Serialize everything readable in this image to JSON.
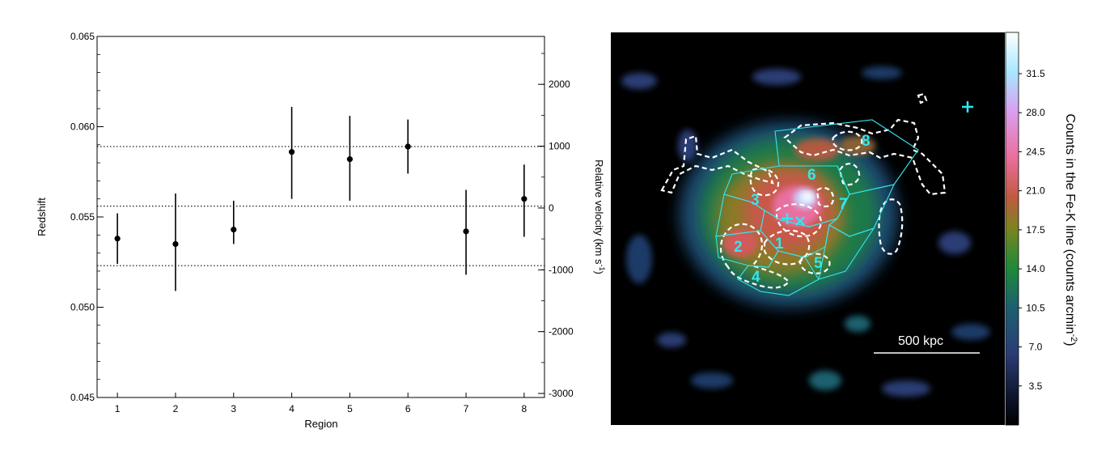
{
  "chart_data": [
    {
      "type": "scatter",
      "xlabel": "Region",
      "ylabel": "Redshift",
      "y2label_main": "Relative velocity (km s",
      "y2label_sup": "-1",
      "y2label_end": ")",
      "xlim": [
        0.65,
        8.35
      ],
      "ylim": [
        0.045,
        0.065
      ],
      "y2lim": [
        -3065,
        2775
      ],
      "x_ticks": [
        "1",
        "2",
        "3",
        "4",
        "5",
        "6",
        "7",
        "8"
      ],
      "y_ticks": [
        "0.045",
        "0.050",
        "0.055",
        "0.060",
        "0.065"
      ],
      "y_tick_values": [
        0.045,
        0.05,
        0.055,
        0.06,
        0.065
      ],
      "y2_ticks": [
        "-3000",
        "-2000",
        "-1000",
        "0",
        "1000",
        "2000"
      ],
      "y2_tick_values": [
        -3000,
        -2000,
        -1000,
        0,
        1000,
        2000
      ],
      "reference_lines": [
        0.0523,
        0.0556,
        0.0589
      ],
      "series": [
        {
          "points": [
            {
              "x": 1,
              "y": 0.0538,
              "lo": 0.0524,
              "hi": 0.0552
            },
            {
              "x": 2,
              "y": 0.0535,
              "lo": 0.0509,
              "hi": 0.0563
            },
            {
              "x": 3,
              "y": 0.0543,
              "lo": 0.0535,
              "hi": 0.0559
            },
            {
              "x": 4,
              "y": 0.0586,
              "lo": 0.056,
              "hi": 0.0611
            },
            {
              "x": 5,
              "y": 0.0582,
              "lo": 0.0559,
              "hi": 0.0606
            },
            {
              "x": 6,
              "y": 0.0589,
              "lo": 0.0574,
              "hi": 0.0604
            },
            {
              "x": 7,
              "y": 0.0542,
              "lo": 0.0518,
              "hi": 0.0565
            },
            {
              "x": 8,
              "y": 0.056,
              "lo": 0.0539,
              "hi": 0.0579
            }
          ]
        }
      ]
    },
    {
      "type": "heatmap",
      "colorbar_label_main": "Counts in the Fe-K line  (counts arcmin",
      "colorbar_label_sup": "-2",
      "colorbar_label_end": ")",
      "colorbar_ticks": [
        "3.5",
        "7.0",
        "10.5",
        "14.0",
        "17.5",
        "21.0",
        "24.5",
        "28.0",
        "31.5"
      ],
      "colorbar_tick_values": [
        3.5,
        7.0,
        10.5,
        14.0,
        17.5,
        21.0,
        24.5,
        28.0,
        31.5
      ],
      "colorbar_range": [
        0,
        35.2
      ],
      "colors": [
        "#000000",
        "#101830",
        "#2a3c74",
        "#1c6070",
        "#1e8a38",
        "#7a8420",
        "#c05a40",
        "#ec6e9c",
        "#d8a0f0",
        "#a8e8ff",
        "#ffffff"
      ],
      "scale_bar_label": "500 kpc",
      "region_labels": [
        "1",
        "2",
        "3",
        "4",
        "5",
        "6",
        "7",
        "8"
      ],
      "marker_color": "#33e6f0"
    }
  ]
}
